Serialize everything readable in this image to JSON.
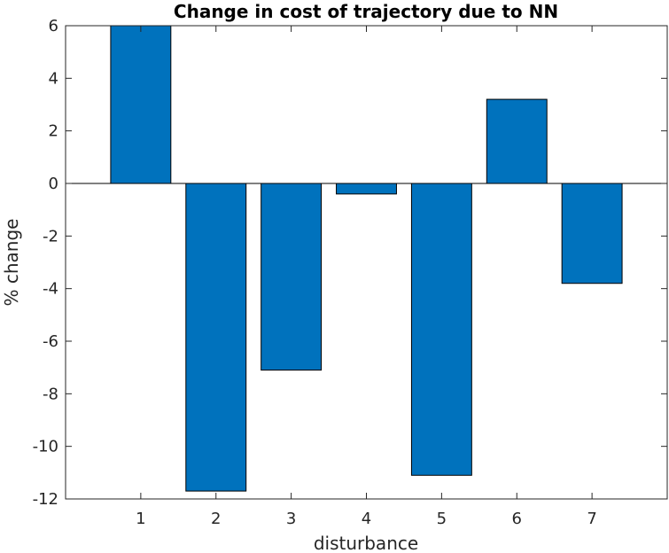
{
  "chart_data": {
    "type": "bar",
    "title": "Change in cost of trajectory due to NN",
    "xlabel": "disturbance",
    "ylabel": "% change",
    "categories": [
      "1",
      "2",
      "3",
      "4",
      "5",
      "6",
      "7"
    ],
    "values": [
      6.0,
      -11.7,
      -7.1,
      -0.4,
      -11.1,
      3.2,
      -3.8
    ],
    "xlim": [
      0,
      8
    ],
    "ylim": [
      -12,
      6
    ],
    "yticks": [
      6,
      4,
      2,
      0,
      -2,
      -4,
      -6,
      -8,
      -10,
      -12
    ],
    "grid": false,
    "bar_color": "#0072BD"
  }
}
